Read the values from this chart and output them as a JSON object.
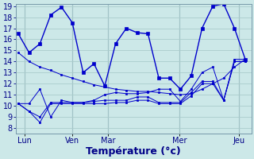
{
  "background_color": "#cce8e8",
  "grid_color": "#aacccc",
  "line_color": "#0000cc",
  "xlabel": "Température (°c)",
  "ylim": [
    8,
    19
  ],
  "yticks": [
    8,
    9,
    10,
    11,
    12,
    13,
    14,
    15,
    16,
    17,
    18,
    19
  ],
  "day_positions": [
    0.5,
    4.5,
    7.5,
    13.5,
    18.5
  ],
  "day_labels": [
    "Lun",
    "Ven",
    "Mar",
    "Mer",
    "Jeu"
  ],
  "series": {
    "main": [
      16.5,
      14.8,
      15.6,
      18.2,
      18.9,
      17.5,
      13.0,
      13.8,
      11.8,
      15.6,
      17.0,
      16.6,
      16.5,
      12.5,
      12.5,
      11.5,
      12.7,
      17.0,
      19.0,
      19.2,
      17.0,
      14.2
    ],
    "line2": [
      14.8,
      14.0,
      13.5,
      13.2,
      12.8,
      12.5,
      12.2,
      11.9,
      11.7,
      11.5,
      11.4,
      11.3,
      11.3,
      11.2,
      11.1,
      11.0,
      11.1,
      11.5,
      12.0,
      12.5,
      13.5,
      14.2
    ],
    "line3": [
      10.2,
      10.2,
      11.5,
      9.0,
      10.5,
      10.3,
      10.3,
      10.5,
      11.0,
      11.2,
      11.1,
      11.1,
      11.2,
      11.5,
      11.5,
      10.4,
      11.5,
      13.0,
      13.5,
      10.5,
      14.2,
      14.2
    ],
    "line4": [
      10.2,
      9.5,
      9.0,
      10.3,
      10.3,
      10.3,
      10.3,
      10.4,
      10.5,
      10.5,
      10.5,
      10.8,
      10.8,
      10.3,
      10.3,
      10.3,
      11.2,
      12.2,
      12.2,
      10.5,
      14.0,
      14.0
    ],
    "line5": [
      10.2,
      9.5,
      8.5,
      10.2,
      10.2,
      10.2,
      10.2,
      10.2,
      10.2,
      10.3,
      10.3,
      10.5,
      10.5,
      10.2,
      10.2,
      10.2,
      10.9,
      12.0,
      12.0,
      10.5,
      14.0,
      14.0
    ]
  },
  "n_points": 22,
  "tick_fontsize": 7,
  "xlabel_fontsize": 9
}
